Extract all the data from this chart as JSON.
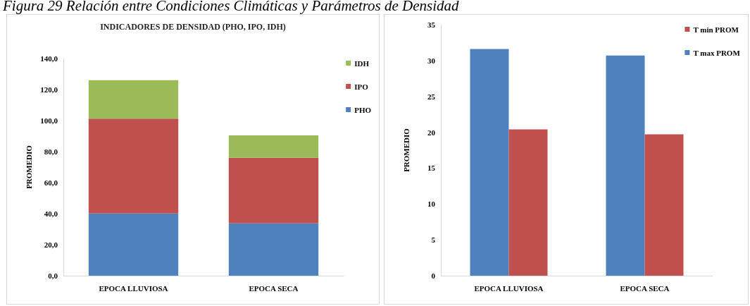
{
  "chart_data": [
    {
      "type": "bar",
      "title": "INDICADORES DE DENSIDAD (PHO, IPO, IDH)",
      "annotations": [
        "Figura 29 Relación entre Condiciones Climáticas y Parámetros de Densidad"
      ],
      "ylabel": "PROMEDIO",
      "categories": [
        "EPOCA LLUVIOSA",
        "EPOCA SECA"
      ],
      "stacked": true,
      "series": [
        {
          "name": "PHO",
          "color": "#4f81bd",
          "values": [
            40.1,
            33.7
          ]
        },
        {
          "name": "IPO",
          "color": "#c0504d",
          "values": [
            61.1,
            42.3
          ]
        },
        {
          "name": "IDH",
          "color": "#9bbb59",
          "values": [
            24.8,
            14.4
          ]
        }
      ],
      "ylim": [
        0,
        140
      ],
      "yticks": [
        {
          "value": 0,
          "label": "0,0"
        },
        {
          "value": 20,
          "label": "20,0"
        },
        {
          "value": 40,
          "label": "40,0"
        },
        {
          "value": 60,
          "label": "60,0"
        },
        {
          "value": 80,
          "label": "80,0"
        },
        {
          "value": 100,
          "label": "100,0"
        },
        {
          "value": 120,
          "label": "120,0"
        },
        {
          "value": 140,
          "label": "140,0"
        }
      ],
      "legend": "top right"
    },
    {
      "type": "bar",
      "ylabel": "PROMEDIO",
      "categories": [
        "EPOCA LLUVIOSA",
        "EPOCA SECA"
      ],
      "series": [
        {
          "name": "T max PROM",
          "color": "#4f81bd",
          "values": [
            31.6,
            30.7
          ]
        },
        {
          "name": "T min PROM",
          "color": "#c0504d",
          "values": [
            20.4,
            19.7
          ]
        }
      ],
      "ylim": [
        0,
        35
      ],
      "yticks": [
        0,
        5,
        10,
        15,
        20,
        25,
        30,
        35
      ],
      "legend": "top right"
    }
  ]
}
